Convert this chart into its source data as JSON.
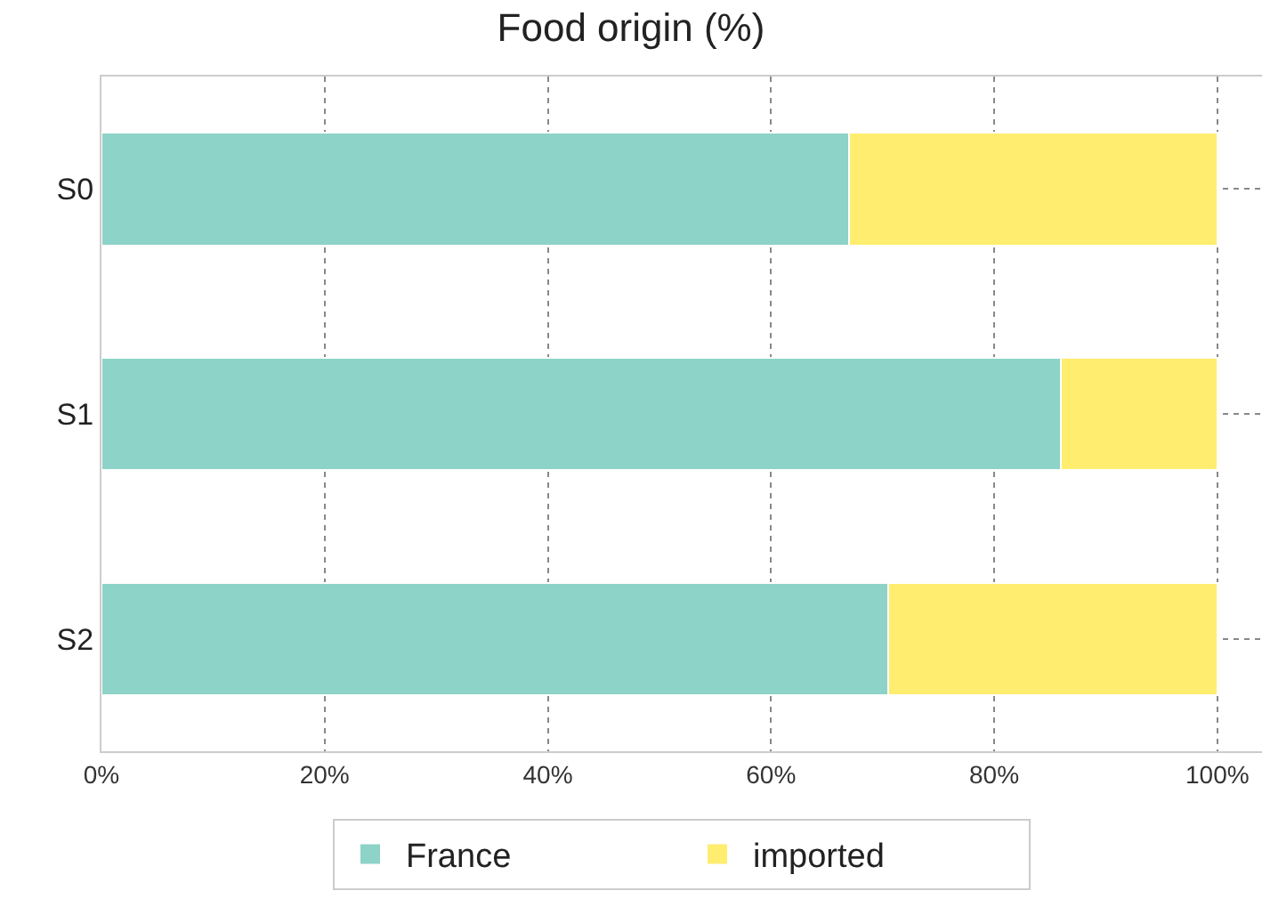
{
  "chart_data": {
    "type": "bar",
    "orientation": "horizontal",
    "stacked": true,
    "title": "Food origin (%)",
    "categories": [
      "S0",
      "S1",
      "S2"
    ],
    "series": [
      {
        "name": "France",
        "color": "#8dd3c7",
        "values": [
          67,
          86,
          70.5
        ]
      },
      {
        "name": "imported",
        "color": "#ffed6f",
        "values": [
          33,
          14,
          29.5
        ]
      }
    ],
    "xlim": [
      0,
      104
    ],
    "xticks": [
      {
        "value": 0,
        "label": "0%"
      },
      {
        "value": 20,
        "label": "20%"
      },
      {
        "value": 40,
        "label": "40%"
      },
      {
        "value": 60,
        "label": "60%"
      },
      {
        "value": 80,
        "label": "80%"
      },
      {
        "value": 100,
        "label": "100%"
      }
    ],
    "grid": true,
    "legend": "bottom"
  }
}
